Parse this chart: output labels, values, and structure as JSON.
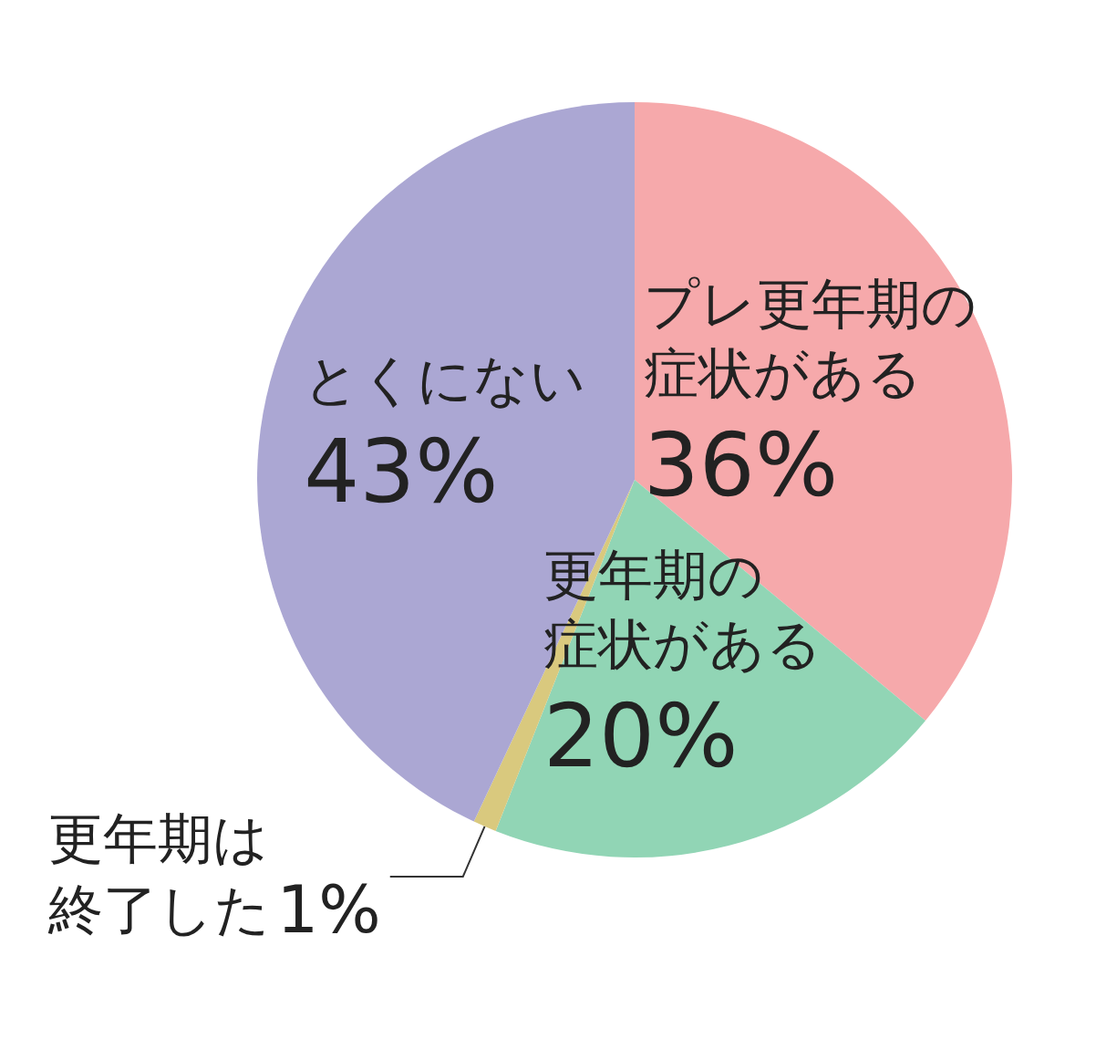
{
  "chart_data": {
    "type": "pie",
    "categories": [
      "プレ更年期の症状がある",
      "更年期の症状がある",
      "更年期は終了した",
      "とくにない"
    ],
    "values": [
      36,
      20,
      1,
      43
    ],
    "value_labels": [
      "36%",
      "20%",
      "1%",
      "43%"
    ],
    "colors": [
      "#f6a9ab",
      "#91d5b5",
      "#d9c97e",
      "#aba7d3"
    ],
    "legend": false
  }
}
